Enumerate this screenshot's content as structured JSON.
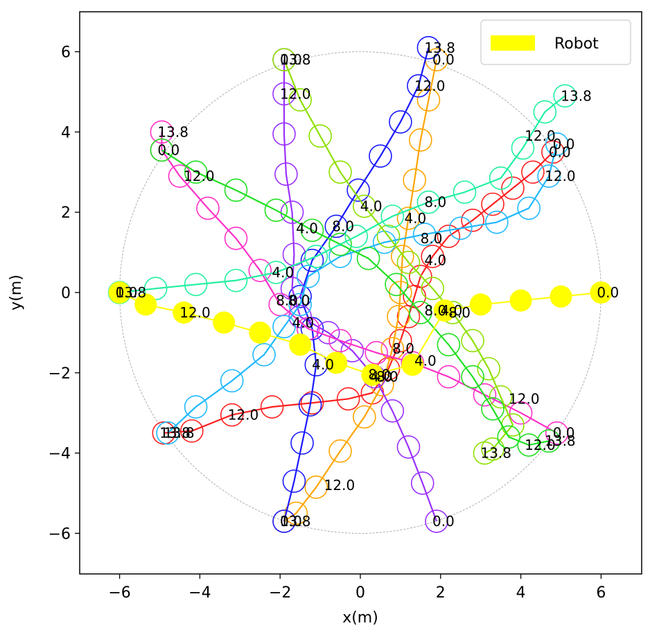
{
  "chart_data": {
    "type": "scatter",
    "xlabel": "x(m)",
    "ylabel": "y(m)",
    "xlim": [
      -7,
      7
    ],
    "ylim": [
      -7,
      7
    ],
    "xticks": [
      "−6",
      "−4",
      "−2",
      "0",
      "2",
      "4",
      "6"
    ],
    "yticks": [
      "−6",
      "−4",
      "−2",
      "0",
      "2",
      "4",
      "6"
    ],
    "xtick_values": [
      -6,
      -4,
      -2,
      0,
      2,
      4,
      6
    ],
    "ytick_values": [
      -6,
      -4,
      -2,
      0,
      2,
      4,
      6
    ],
    "grid": false,
    "legend": {
      "placement": "top-right",
      "entries": [
        {
          "label": "Robot",
          "color": "#ffff00"
        }
      ]
    },
    "boundary_circle_radius": 6,
    "robot": {
      "name": "Robot",
      "color": "#ffff00",
      "points": [
        [
          6.0,
          0.0
        ],
        [
          5.0,
          -0.1
        ],
        [
          4.0,
          -0.2
        ],
        [
          3.0,
          -0.3
        ],
        [
          2.1,
          -0.45
        ],
        [
          1.3,
          -1.8
        ],
        [
          0.3,
          -2.05
        ],
        [
          -0.6,
          -1.75
        ],
        [
          -1.5,
          -1.3
        ],
        [
          -2.5,
          -1.0
        ],
        [
          -3.4,
          -0.75
        ],
        [
          -4.4,
          -0.5
        ],
        [
          -5.35,
          -0.3
        ],
        [
          -6.0,
          0.0
        ]
      ],
      "labels": [
        {
          "text": "0.0",
          "x": 6.0,
          "y": 0.0
        },
        {
          "text": "4.0",
          "x": 2.1,
          "y": -0.45
        },
        {
          "text": "8.0",
          "x": 0.3,
          "y": -2.05
        },
        {
          "text": "12.0",
          "x": -4.4,
          "y": -0.5
        },
        {
          "text": "13.8",
          "x": -6.0,
          "y": 0.0
        }
      ]
    },
    "agents": [
      {
        "color": "#ff2020",
        "points": [
          [
            4.8,
            3.5
          ],
          [
            4.3,
            3.0
          ],
          [
            3.8,
            2.6
          ],
          [
            3.3,
            2.2
          ],
          [
            2.8,
            1.8
          ],
          [
            2.2,
            1.4
          ],
          [
            1.8,
            0.9
          ],
          [
            1.5,
            0.4
          ],
          [
            1.35,
            -0.1
          ],
          [
            1.2,
            -0.6
          ],
          [
            1.0,
            -1.2
          ],
          [
            0.7,
            -1.9
          ],
          [
            0.3,
            -2.5
          ],
          [
            -0.3,
            -2.65
          ],
          [
            -1.2,
            -2.75
          ],
          [
            -2.2,
            -2.85
          ],
          [
            -3.2,
            -3.05
          ],
          [
            -4.2,
            -3.45
          ],
          [
            -4.9,
            -3.5
          ]
        ],
        "labels": [
          {
            "text": "0.0",
            "x": 4.8,
            "y": 3.5
          },
          {
            "text": "4.0",
            "x": 1.7,
            "y": 0.8
          },
          {
            "text": "8.0",
            "x": 0.5,
            "y": -2.1
          },
          {
            "text": "12.0",
            "x": -3.2,
            "y": -3.05
          },
          {
            "text": "13.8",
            "x": -4.9,
            "y": -3.5
          }
        ]
      },
      {
        "color": "#ffa500",
        "points": [
          [
            1.9,
            5.8
          ],
          [
            1.7,
            4.8
          ],
          [
            1.5,
            3.8
          ],
          [
            1.35,
            2.8
          ],
          [
            1.2,
            1.85
          ],
          [
            1.05,
            0.9
          ],
          [
            1.0,
            0.0
          ],
          [
            0.95,
            -0.6
          ],
          [
            0.8,
            -1.4
          ],
          [
            0.55,
            -2.3
          ],
          [
            0.1,
            -3.1
          ],
          [
            -0.5,
            -3.95
          ],
          [
            -1.1,
            -4.85
          ],
          [
            -1.6,
            -5.5
          ],
          [
            -1.9,
            -5.7
          ]
        ],
        "labels": [
          {
            "text": "0.0",
            "x": 1.9,
            "y": 5.8
          },
          {
            "text": "4.0",
            "x": 1.2,
            "y": 1.85
          },
          {
            "text": "8.0",
            "x": 0.9,
            "y": -1.4
          },
          {
            "text": "12.0",
            "x": -0.8,
            "y": -4.8
          },
          {
            "text": "13.8",
            "x": -1.9,
            "y": -5.7
          }
        ]
      },
      {
        "color": "#1a1aff",
        "points": [
          [
            -1.9,
            -5.7
          ],
          [
            -1.65,
            -4.7
          ],
          [
            -1.45,
            -3.75
          ],
          [
            -1.25,
            -2.8
          ],
          [
            -1.1,
            -1.8
          ],
          [
            -1.2,
            -0.9
          ],
          [
            -1.5,
            -0.1
          ],
          [
            -1.2,
            0.8
          ],
          [
            -0.6,
            1.65
          ],
          [
            -0.05,
            2.55
          ],
          [
            0.5,
            3.4
          ],
          [
            1.0,
            4.25
          ],
          [
            1.45,
            5.15
          ],
          [
            1.7,
            6.1
          ]
        ],
        "labels": [
          {
            "text": "0.0",
            "x": -1.9,
            "y": -5.7
          },
          {
            "text": "4.0",
            "x": -1.1,
            "y": -1.8
          },
          {
            "text": "8.0",
            "x": -0.6,
            "y": 1.65
          },
          {
            "text": "12.0",
            "x": 1.45,
            "y": 5.15
          },
          {
            "text": "13.8",
            "x": 1.7,
            "y": 6.1
          }
        ]
      },
      {
        "color": "#9b30ff",
        "points": [
          [
            1.9,
            -5.7
          ],
          [
            1.55,
            -4.75
          ],
          [
            1.2,
            -3.85
          ],
          [
            0.8,
            -2.95
          ],
          [
            0.35,
            -2.1
          ],
          [
            -0.2,
            -1.45
          ],
          [
            -0.8,
            -1.0
          ],
          [
            -1.5,
            -0.6
          ],
          [
            -1.7,
            0.1
          ],
          [
            -1.65,
            0.95
          ],
          [
            -1.7,
            2.0
          ],
          [
            -1.85,
            2.95
          ],
          [
            -1.9,
            3.95
          ],
          [
            -1.9,
            4.95
          ],
          [
            -1.9,
            5.8
          ]
        ],
        "labels": [
          {
            "text": "0.0",
            "x": 1.9,
            "y": -5.7
          },
          {
            "text": "4.0",
            "x": 0.35,
            "y": -2.1
          },
          {
            "text": "8.0",
            "x": -1.7,
            "y": -0.2
          },
          {
            "text": "12.0",
            "x": -1.9,
            "y": 4.95
          },
          {
            "text": "13.8",
            "x": -1.9,
            "y": 5.8
          }
        ]
      },
      {
        "color": "#ff30c8",
        "points": [
          [
            4.9,
            -3.5
          ],
          [
            4.0,
            -3.0
          ],
          [
            3.1,
            -2.55
          ],
          [
            2.2,
            -2.1
          ],
          [
            1.3,
            -1.75
          ],
          [
            0.4,
            -1.5
          ],
          [
            -0.5,
            -1.2
          ],
          [
            -1.3,
            -0.9
          ],
          [
            -2.0,
            -0.3
          ],
          [
            -2.5,
            0.55
          ],
          [
            -3.1,
            1.35
          ],
          [
            -3.8,
            2.1
          ],
          [
            -4.5,
            2.9
          ],
          [
            -4.95,
            3.55
          ],
          [
            -4.95,
            4.0
          ]
        ],
        "labels": [
          {
            "text": "0.0",
            "x": 4.9,
            "y": -3.5
          },
          {
            "text": "4.0",
            "x": 1.45,
            "y": -1.7
          },
          {
            "text": "8.0",
            "x": -2.0,
            "y": -0.2
          },
          {
            "text": "12.0",
            "x": -4.3,
            "y": 2.9
          },
          {
            "text": "13.8",
            "x": -4.95,
            "y": 4.0
          }
        ]
      },
      {
        "color": "#1fb8ff",
        "points": [
          [
            4.9,
            3.7
          ],
          [
            4.7,
            2.9
          ],
          [
            4.2,
            2.1
          ],
          [
            3.4,
            1.75
          ],
          [
            2.5,
            1.6
          ],
          [
            1.6,
            1.45
          ],
          [
            0.6,
            1.25
          ],
          [
            -0.5,
            0.9
          ],
          [
            -1.3,
            0.4
          ],
          [
            -1.5,
            -0.3
          ],
          [
            -1.9,
            -0.85
          ],
          [
            -2.4,
            -1.55
          ],
          [
            -3.2,
            -2.2
          ],
          [
            -4.1,
            -2.85
          ],
          [
            -4.8,
            -3.5
          ]
        ],
        "labels": [
          {
            "text": "0.0",
            "x": 4.9,
            "y": 3.7
          },
          {
            "text": "4.0",
            "x": -1.6,
            "y": -0.75
          },
          {
            "text": "8.0",
            "x": 1.6,
            "y": 1.35
          },
          {
            "text": "12.0",
            "x": 4.7,
            "y": 2.9
          },
          {
            "text": "13.8",
            "x": -4.8,
            "y": -3.5
          }
        ]
      },
      {
        "color": "#8ee000",
        "points": [
          [
            -1.9,
            5.8
          ],
          [
            -1.5,
            4.8
          ],
          [
            -1.0,
            3.9
          ],
          [
            -0.5,
            3.0
          ],
          [
            0.1,
            2.15
          ],
          [
            0.7,
            1.4
          ],
          [
            1.2,
            0.75
          ],
          [
            1.8,
            0.1
          ],
          [
            2.3,
            -0.5
          ],
          [
            2.8,
            -1.2
          ],
          [
            3.2,
            -1.9
          ],
          [
            3.5,
            -2.6
          ],
          [
            3.8,
            -3.3
          ],
          [
            3.3,
            -3.9
          ],
          [
            3.1,
            -4.0
          ]
        ],
        "labels": [
          {
            "text": "0.0",
            "x": -1.9,
            "y": 5.8
          },
          {
            "text": "4.0",
            "x": 0.1,
            "y": 2.15
          },
          {
            "text": "8.0",
            "x": 2.3,
            "y": -0.5
          },
          {
            "text": "12.0",
            "x": 3.8,
            "y": -2.65
          },
          {
            "text": "13.8",
            "x": 3.1,
            "y": -4.0
          }
        ]
      },
      {
        "color": "#20e020",
        "points": [
          [
            -4.95,
            3.55
          ],
          [
            -4.1,
            3.0
          ],
          [
            -3.1,
            2.55
          ],
          [
            -2.1,
            2.05
          ],
          [
            -1.2,
            1.55
          ],
          [
            -0.5,
            1.2
          ],
          [
            0.2,
            0.85
          ],
          [
            0.9,
            0.2
          ],
          [
            1.5,
            -0.5
          ],
          [
            2.2,
            -1.3
          ],
          [
            2.8,
            -2.1
          ],
          [
            3.3,
            -2.9
          ],
          [
            3.7,
            -3.6
          ],
          [
            4.2,
            -3.8
          ],
          [
            4.7,
            -3.7
          ]
        ],
        "labels": [
          {
            "text": "0.0",
            "x": -4.95,
            "y": 3.55
          },
          {
            "text": "4.0",
            "x": -1.5,
            "y": 1.6
          },
          {
            "text": "8.0",
            "x": 1.7,
            "y": -0.45
          },
          {
            "text": "12.0",
            "x": 4.2,
            "y": -3.8
          },
          {
            "text": "13.8",
            "x": 4.7,
            "y": -3.7
          }
        ]
      },
      {
        "color": "#20f0a0",
        "points": [
          [
            -6.0,
            0.0
          ],
          [
            -5.1,
            0.1
          ],
          [
            -4.1,
            0.2
          ],
          [
            -3.1,
            0.3
          ],
          [
            -2.1,
            0.5
          ],
          [
            -1.1,
            0.9
          ],
          [
            -0.1,
            1.4
          ],
          [
            0.8,
            1.9
          ],
          [
            1.7,
            2.25
          ],
          [
            2.6,
            2.5
          ],
          [
            3.5,
            2.85
          ],
          [
            4.05,
            3.6
          ],
          [
            4.6,
            4.5
          ],
          [
            5.1,
            4.9
          ]
        ],
        "labels": [
          {
            "text": "0.0",
            "x": -6.0,
            "y": 0.0
          },
          {
            "text": "4.0",
            "x": -2.1,
            "y": 0.5
          },
          {
            "text": "8.0",
            "x": 1.7,
            "y": 2.25
          },
          {
            "text": "12.0",
            "x": 4.2,
            "y": 3.9
          },
          {
            "text": "13.8",
            "x": 5.1,
            "y": 4.9
          }
        ]
      }
    ]
  }
}
